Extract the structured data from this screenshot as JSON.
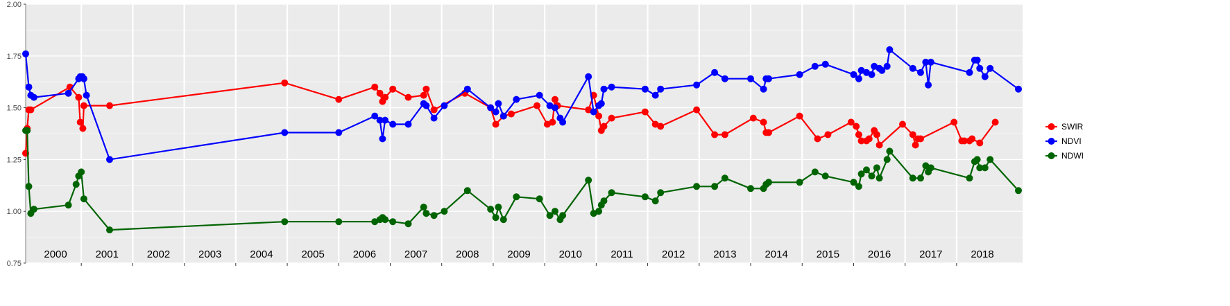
{
  "chart_data": {
    "type": "line",
    "title": "",
    "xlabel": "",
    "ylabel": "",
    "ylim": [
      0.75,
      2.0
    ],
    "xlim": [
      1999.9,
      2018.8
    ],
    "yticks": [
      0.75,
      1.0,
      1.25,
      1.5,
      1.75,
      2.0
    ],
    "ytick_labels": [
      "0.75",
      "1.00",
      "1.25",
      "1.50",
      "1.75",
      "2.00"
    ],
    "year_labels": [
      "2000",
      "2001",
      "2002",
      "2003",
      "2004",
      "2005",
      "2006",
      "2007",
      "2008",
      "2009",
      "2010",
      "2011",
      "2012",
      "2013",
      "2014",
      "2015",
      "2016",
      "2017",
      "2018"
    ],
    "grid": true,
    "legend": "right",
    "background": "#ebebeb",
    "series": [
      {
        "name": "SWIR",
        "color": "#ff0000",
        "points": [
          [
            1999.92,
            1.28
          ],
          [
            1999.95,
            1.4
          ],
          [
            1999.98,
            1.49
          ],
          [
            2000.02,
            1.49
          ],
          [
            2000.78,
            1.6
          ],
          [
            2000.95,
            1.55
          ],
          [
            2000.98,
            1.43
          ],
          [
            2001.03,
            1.4
          ],
          [
            2001.05,
            1.51
          ],
          [
            2001.55,
            1.51
          ],
          [
            2004.95,
            1.62
          ],
          [
            2006.0,
            1.54
          ],
          [
            2006.7,
            1.6
          ],
          [
            2006.8,
            1.57
          ],
          [
            2006.85,
            1.53
          ],
          [
            2006.9,
            1.55
          ],
          [
            2007.05,
            1.59
          ],
          [
            2007.35,
            1.55
          ],
          [
            2007.65,
            1.56
          ],
          [
            2007.7,
            1.59
          ],
          [
            2007.85,
            1.49
          ],
          [
            2008.45,
            1.57
          ],
          [
            2008.95,
            1.5
          ],
          [
            2009.05,
            1.42
          ],
          [
            2009.2,
            1.46
          ],
          [
            2009.35,
            1.47
          ],
          [
            2009.85,
            1.51
          ],
          [
            2010.05,
            1.42
          ],
          [
            2010.15,
            1.43
          ],
          [
            2010.2,
            1.54
          ],
          [
            2010.25,
            1.51
          ],
          [
            2010.85,
            1.49
          ],
          [
            2010.95,
            1.56
          ],
          [
            2011.05,
            1.46
          ],
          [
            2011.1,
            1.39
          ],
          [
            2011.15,
            1.41
          ],
          [
            2011.3,
            1.45
          ],
          [
            2011.95,
            1.48
          ],
          [
            2012.15,
            1.42
          ],
          [
            2012.25,
            1.41
          ],
          [
            2012.95,
            1.49
          ],
          [
            2013.3,
            1.37
          ],
          [
            2013.5,
            1.37
          ],
          [
            2014.05,
            1.45
          ],
          [
            2014.25,
            1.43
          ],
          [
            2014.3,
            1.38
          ],
          [
            2014.35,
            1.38
          ],
          [
            2014.95,
            1.46
          ],
          [
            2015.3,
            1.35
          ],
          [
            2015.5,
            1.37
          ],
          [
            2015.95,
            1.43
          ],
          [
            2016.05,
            1.41
          ],
          [
            2016.1,
            1.37
          ],
          [
            2016.15,
            1.34
          ],
          [
            2016.25,
            1.34
          ],
          [
            2016.3,
            1.35
          ],
          [
            2016.4,
            1.39
          ],
          [
            2016.45,
            1.37
          ],
          [
            2016.5,
            1.32
          ],
          [
            2016.95,
            1.42
          ],
          [
            2017.15,
            1.37
          ],
          [
            2017.2,
            1.32
          ],
          [
            2017.25,
            1.35
          ],
          [
            2017.3,
            1.35
          ],
          [
            2017.95,
            1.43
          ],
          [
            2018.1,
            1.34
          ],
          [
            2018.15,
            1.34
          ],
          [
            2018.25,
            1.34
          ],
          [
            2018.3,
            1.35
          ],
          [
            2018.45,
            1.33
          ],
          [
            2018.75,
            1.43
          ]
        ]
      },
      {
        "name": "NDVI",
        "color": "#0000ff",
        "points": [
          [
            1999.92,
            1.76
          ],
          [
            1999.98,
            1.6
          ],
          [
            2000.02,
            1.56
          ],
          [
            2000.08,
            1.55
          ],
          [
            2000.75,
            1.57
          ],
          [
            2000.95,
            1.64
          ],
          [
            2000.98,
            1.65
          ],
          [
            2001.02,
            1.65
          ],
          [
            2001.05,
            1.64
          ],
          [
            2001.1,
            1.56
          ],
          [
            2001.55,
            1.25
          ],
          [
            2004.95,
            1.38
          ],
          [
            2006.0,
            1.38
          ],
          [
            2006.7,
            1.46
          ],
          [
            2006.8,
            1.44
          ],
          [
            2006.85,
            1.35
          ],
          [
            2006.9,
            1.44
          ],
          [
            2007.05,
            1.42
          ],
          [
            2007.35,
            1.42
          ],
          [
            2007.65,
            1.52
          ],
          [
            2007.7,
            1.51
          ],
          [
            2007.85,
            1.45
          ],
          [
            2008.05,
            1.51
          ],
          [
            2008.5,
            1.59
          ],
          [
            2008.95,
            1.5
          ],
          [
            2009.05,
            1.48
          ],
          [
            2009.1,
            1.52
          ],
          [
            2009.2,
            1.46
          ],
          [
            2009.45,
            1.54
          ],
          [
            2009.9,
            1.56
          ],
          [
            2010.1,
            1.51
          ],
          [
            2010.2,
            1.5
          ],
          [
            2010.3,
            1.45
          ],
          [
            2010.35,
            1.43
          ],
          [
            2010.85,
            1.65
          ],
          [
            2010.95,
            1.48
          ],
          [
            2011.05,
            1.51
          ],
          [
            2011.1,
            1.52
          ],
          [
            2011.15,
            1.59
          ],
          [
            2011.3,
            1.6
          ],
          [
            2011.95,
            1.59
          ],
          [
            2012.15,
            1.56
          ],
          [
            2012.25,
            1.59
          ],
          [
            2012.95,
            1.61
          ],
          [
            2013.3,
            1.67
          ],
          [
            2013.5,
            1.64
          ],
          [
            2014.0,
            1.64
          ],
          [
            2014.25,
            1.59
          ],
          [
            2014.3,
            1.64
          ],
          [
            2014.35,
            1.64
          ],
          [
            2014.95,
            1.66
          ],
          [
            2015.25,
            1.7
          ],
          [
            2015.45,
            1.71
          ],
          [
            2016.0,
            1.66
          ],
          [
            2016.1,
            1.64
          ],
          [
            2016.15,
            1.68
          ],
          [
            2016.25,
            1.67
          ],
          [
            2016.35,
            1.66
          ],
          [
            2016.4,
            1.7
          ],
          [
            2016.5,
            1.69
          ],
          [
            2016.55,
            1.68
          ],
          [
            2016.65,
            1.7
          ],
          [
            2016.7,
            1.78
          ],
          [
            2017.15,
            1.69
          ],
          [
            2017.3,
            1.67
          ],
          [
            2017.4,
            1.72
          ],
          [
            2017.45,
            1.61
          ],
          [
            2017.5,
            1.72
          ],
          [
            2018.25,
            1.67
          ],
          [
            2018.35,
            1.73
          ],
          [
            2018.4,
            1.73
          ],
          [
            2018.45,
            1.69
          ],
          [
            2018.55,
            1.65
          ],
          [
            2018.65,
            1.69
          ],
          [
            2019.2,
            1.59
          ]
        ]
      },
      {
        "name": "NDWI",
        "color": "#006400",
        "points": [
          [
            1999.92,
            1.39
          ],
          [
            1999.95,
            1.39
          ],
          [
            1999.98,
            1.12
          ],
          [
            2000.02,
            0.99
          ],
          [
            2000.08,
            1.01
          ],
          [
            2000.75,
            1.03
          ],
          [
            2000.9,
            1.13
          ],
          [
            2000.95,
            1.17
          ],
          [
            2001.0,
            1.19
          ],
          [
            2001.05,
            1.06
          ],
          [
            2001.55,
            0.91
          ],
          [
            2004.95,
            0.95
          ],
          [
            2006.0,
            0.95
          ],
          [
            2006.7,
            0.95
          ],
          [
            2006.8,
            0.96
          ],
          [
            2006.85,
            0.97
          ],
          [
            2006.9,
            0.96
          ],
          [
            2007.05,
            0.95
          ],
          [
            2007.35,
            0.94
          ],
          [
            2007.65,
            1.02
          ],
          [
            2007.7,
            0.99
          ],
          [
            2007.85,
            0.98
          ],
          [
            2008.05,
            1.0
          ],
          [
            2008.5,
            1.1
          ],
          [
            2008.95,
            1.01
          ],
          [
            2009.05,
            0.97
          ],
          [
            2009.1,
            1.02
          ],
          [
            2009.2,
            0.96
          ],
          [
            2009.45,
            1.07
          ],
          [
            2009.9,
            1.06
          ],
          [
            2010.1,
            0.98
          ],
          [
            2010.2,
            1.0
          ],
          [
            2010.3,
            0.96
          ],
          [
            2010.35,
            0.98
          ],
          [
            2010.85,
            1.15
          ],
          [
            2010.95,
            0.99
          ],
          [
            2011.05,
            1.0
          ],
          [
            2011.1,
            1.03
          ],
          [
            2011.15,
            1.05
          ],
          [
            2011.3,
            1.09
          ],
          [
            2011.95,
            1.07
          ],
          [
            2012.15,
            1.05
          ],
          [
            2012.25,
            1.09
          ],
          [
            2012.95,
            1.12
          ],
          [
            2013.3,
            1.12
          ],
          [
            2013.5,
            1.16
          ],
          [
            2014.0,
            1.11
          ],
          [
            2014.25,
            1.11
          ],
          [
            2014.3,
            1.13
          ],
          [
            2014.35,
            1.14
          ],
          [
            2014.95,
            1.14
          ],
          [
            2015.25,
            1.19
          ],
          [
            2015.45,
            1.17
          ],
          [
            2016.0,
            1.14
          ],
          [
            2016.1,
            1.12
          ],
          [
            2016.15,
            1.18
          ],
          [
            2016.25,
            1.2
          ],
          [
            2016.35,
            1.17
          ],
          [
            2016.45,
            1.21
          ],
          [
            2016.5,
            1.16
          ],
          [
            2016.65,
            1.25
          ],
          [
            2016.7,
            1.29
          ],
          [
            2017.15,
            1.16
          ],
          [
            2017.3,
            1.16
          ],
          [
            2017.4,
            1.22
          ],
          [
            2017.45,
            1.19
          ],
          [
            2017.5,
            1.21
          ],
          [
            2018.25,
            1.16
          ],
          [
            2018.35,
            1.24
          ],
          [
            2018.4,
            1.25
          ],
          [
            2018.45,
            1.21
          ],
          [
            2018.55,
            1.21
          ],
          [
            2018.65,
            1.25
          ],
          [
            2019.2,
            1.1
          ]
        ]
      }
    ]
  }
}
